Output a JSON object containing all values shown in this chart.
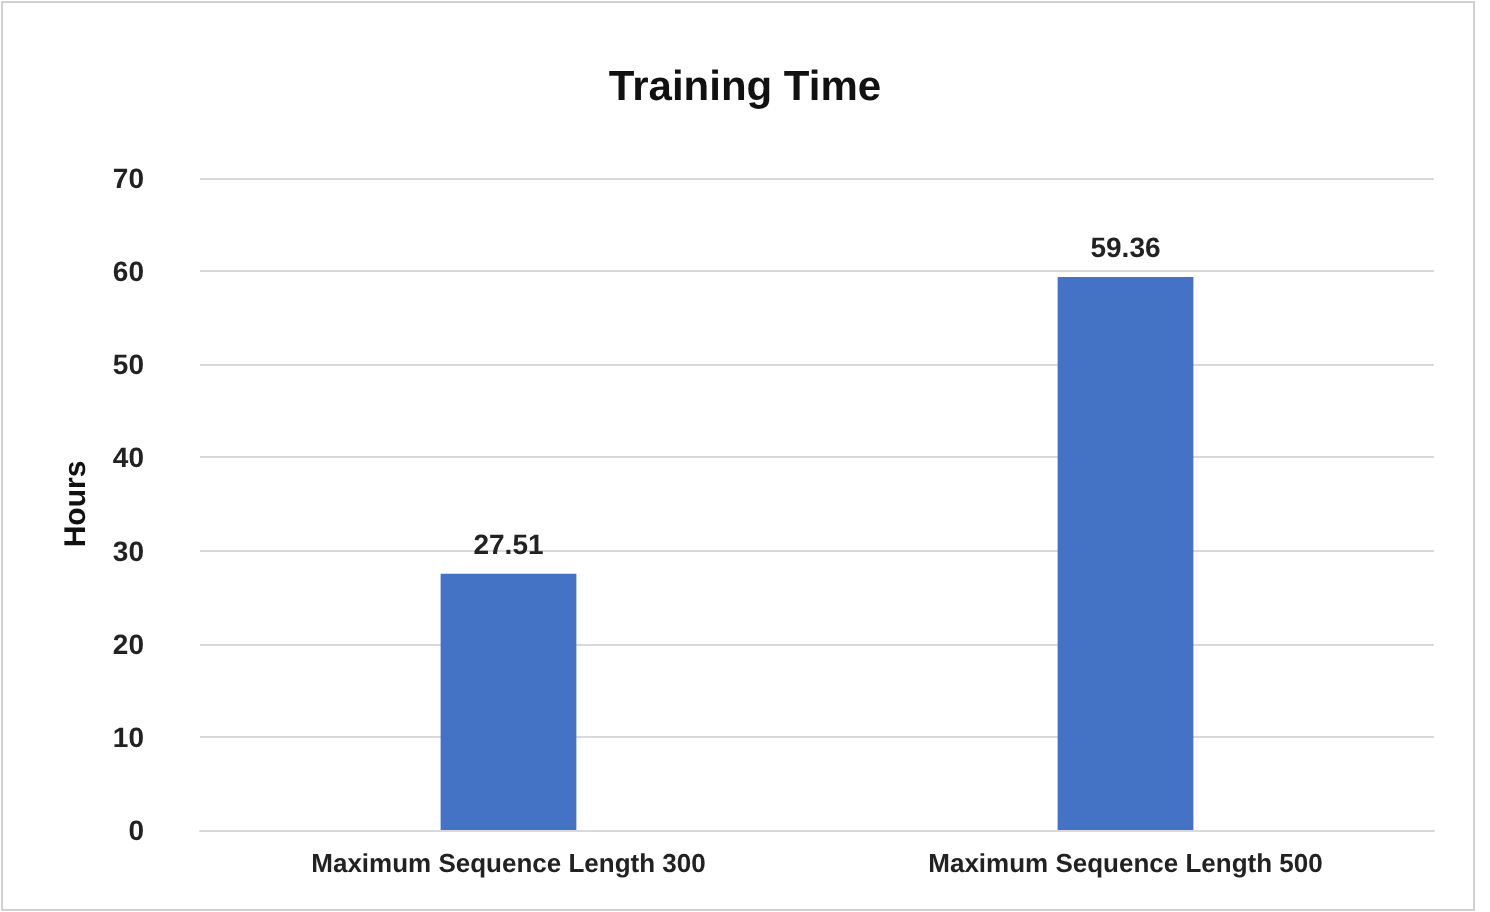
{
  "chart_data": {
    "type": "bar",
    "title": "Training Time",
    "ylabel": "Hours",
    "categories": [
      "Maximum Sequence Length 300",
      "Maximum Sequence Length 500"
    ],
    "values": [
      27.51,
      59.36
    ],
    "color": "#4472c4",
    "ylim": [
      0,
      70
    ],
    "yticks": [
      0,
      10,
      20,
      30,
      40,
      50,
      60,
      70
    ],
    "grid": "y",
    "data_labels": true
  }
}
